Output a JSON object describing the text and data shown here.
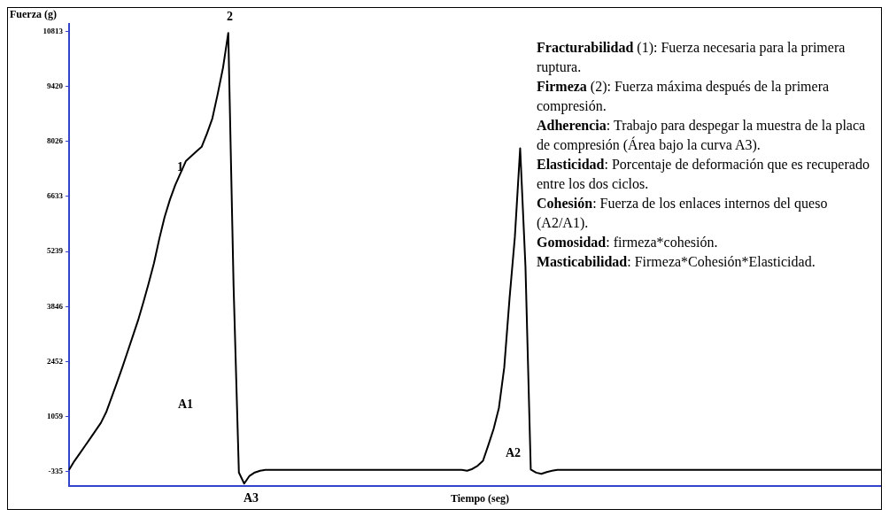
{
  "chart_data": {
    "type": "line",
    "xlabel": "Tiempo (seg)",
    "ylabel": "Fuerza (g)",
    "categories": [
      null,
      null,
      null,
      null,
      null,
      null,
      null,
      null,
      null,
      null,
      null,
      null,
      null,
      null,
      null,
      null,
      null,
      null,
      null,
      null,
      null,
      null,
      null,
      null,
      null,
      null,
      null,
      null,
      null,
      null,
      null,
      null,
      null,
      null,
      null,
      null,
      null,
      null,
      null,
      null,
      null,
      null,
      null,
      null,
      null,
      null,
      null,
      null,
      null,
      null,
      null,
      null,
      null,
      null,
      null,
      null,
      null,
      null,
      null,
      null,
      null,
      null,
      null,
      null,
      null,
      null,
      null,
      null,
      null,
      null,
      null,
      null,
      null,
      null,
      null,
      null,
      null,
      null,
      null,
      null,
      null,
      null,
      null,
      null,
      null,
      null,
      null,
      null,
      null,
      null,
      null,
      null,
      null,
      null,
      null,
      null,
      null,
      null,
      null,
      null,
      null,
      null,
      null,
      null,
      null,
      null,
      null,
      null,
      null,
      null,
      null,
      null,
      null,
      null,
      null,
      null,
      null,
      null,
      null,
      null,
      null,
      null,
      null,
      null,
      null,
      null,
      null,
      null,
      null,
      null,
      null,
      null,
      null,
      null,
      null,
      null,
      null,
      null,
      null,
      null,
      null,
      null,
      null,
      null,
      null,
      null,
      null,
      null,
      null,
      null,
      null,
      null,
      null,
      null
    ],
    "series": [
      {
        "color": "#000000",
        "values": [
          -292,
          -69,
          120,
          315,
          509,
          704,
          899,
          1170,
          1540,
          1908,
          2289,
          2690,
          3092,
          3493,
          3952,
          4434,
          4941,
          5556,
          6110,
          6548,
          6918,
          7221,
          7524,
          7648,
          7771,
          7892,
          8228,
          8606,
          9221,
          9884,
          10772,
          4363,
          -357,
          -638,
          -443,
          -357,
          -313,
          -292,
          -292,
          -292,
          -292,
          -292,
          -292,
          -292,
          -292,
          -292,
          -292,
          -292,
          -292,
          -292,
          -292,
          -292,
          -292,
          -292,
          -292,
          -292,
          -292,
          -292,
          -292,
          -292,
          -292,
          -292,
          -292,
          -292,
          -292,
          -292,
          -292,
          -292,
          -292,
          -292,
          -292,
          -292,
          -292,
          -292,
          -292,
          -313,
          -268,
          -186,
          -62,
          335,
          745,
          1280,
          2300,
          4050,
          5600,
          7850,
          4860,
          -283,
          -361,
          -391,
          -346,
          -313,
          -292,
          -292,
          -292,
          -292,
          -292,
          -292,
          -292,
          -292,
          -292,
          -292,
          -292,
          -292,
          -292,
          -292,
          -292,
          -292,
          -292,
          -292,
          -292,
          -292,
          -292,
          -292,
          -292,
          -292,
          -292,
          -292,
          -292,
          -292,
          -292,
          -292,
          -292,
          -292,
          -292,
          -292,
          -292,
          -292,
          -292,
          -292,
          -292,
          -292,
          -292,
          -292,
          -292,
          -292,
          -292,
          -292,
          -292,
          -292,
          -292,
          -292,
          -292,
          -292,
          -292,
          -292,
          -292,
          -292,
          -292,
          -292,
          -292,
          -292,
          -292,
          -292
        ]
      }
    ],
    "ylim": [
      -700,
      11000
    ],
    "yticks": [
      -335,
      1059,
      2452,
      3846,
      5239,
      6633,
      8026,
      9420,
      10813
    ],
    "tick_labels": "y",
    "grid": false,
    "legend": false,
    "marker": "none",
    "line_style": "solid",
    "annotations": [
      "1",
      "2",
      "A1",
      "A3",
      "A2",
      "Fracturabilidad (1): Fuerza necesaria para la primera ruptura.",
      "Firmeza (2): Fuerza máxima después de la primera compresión.",
      "Adherencia: Trabajo para despegar la muestra de la placa de compresión (Área bajo la curva A3).",
      "Elasticidad: Porcentaje de deformación que es recuperado entre los dos ciclos.",
      "Cohesión: Fuerza de los enlaces internos del queso (A2/A1).",
      "Gomosidad: firmeza*cohesión.",
      "Masticabilidad: Firmeza*Cohesión*Elasticidad."
    ]
  }
}
